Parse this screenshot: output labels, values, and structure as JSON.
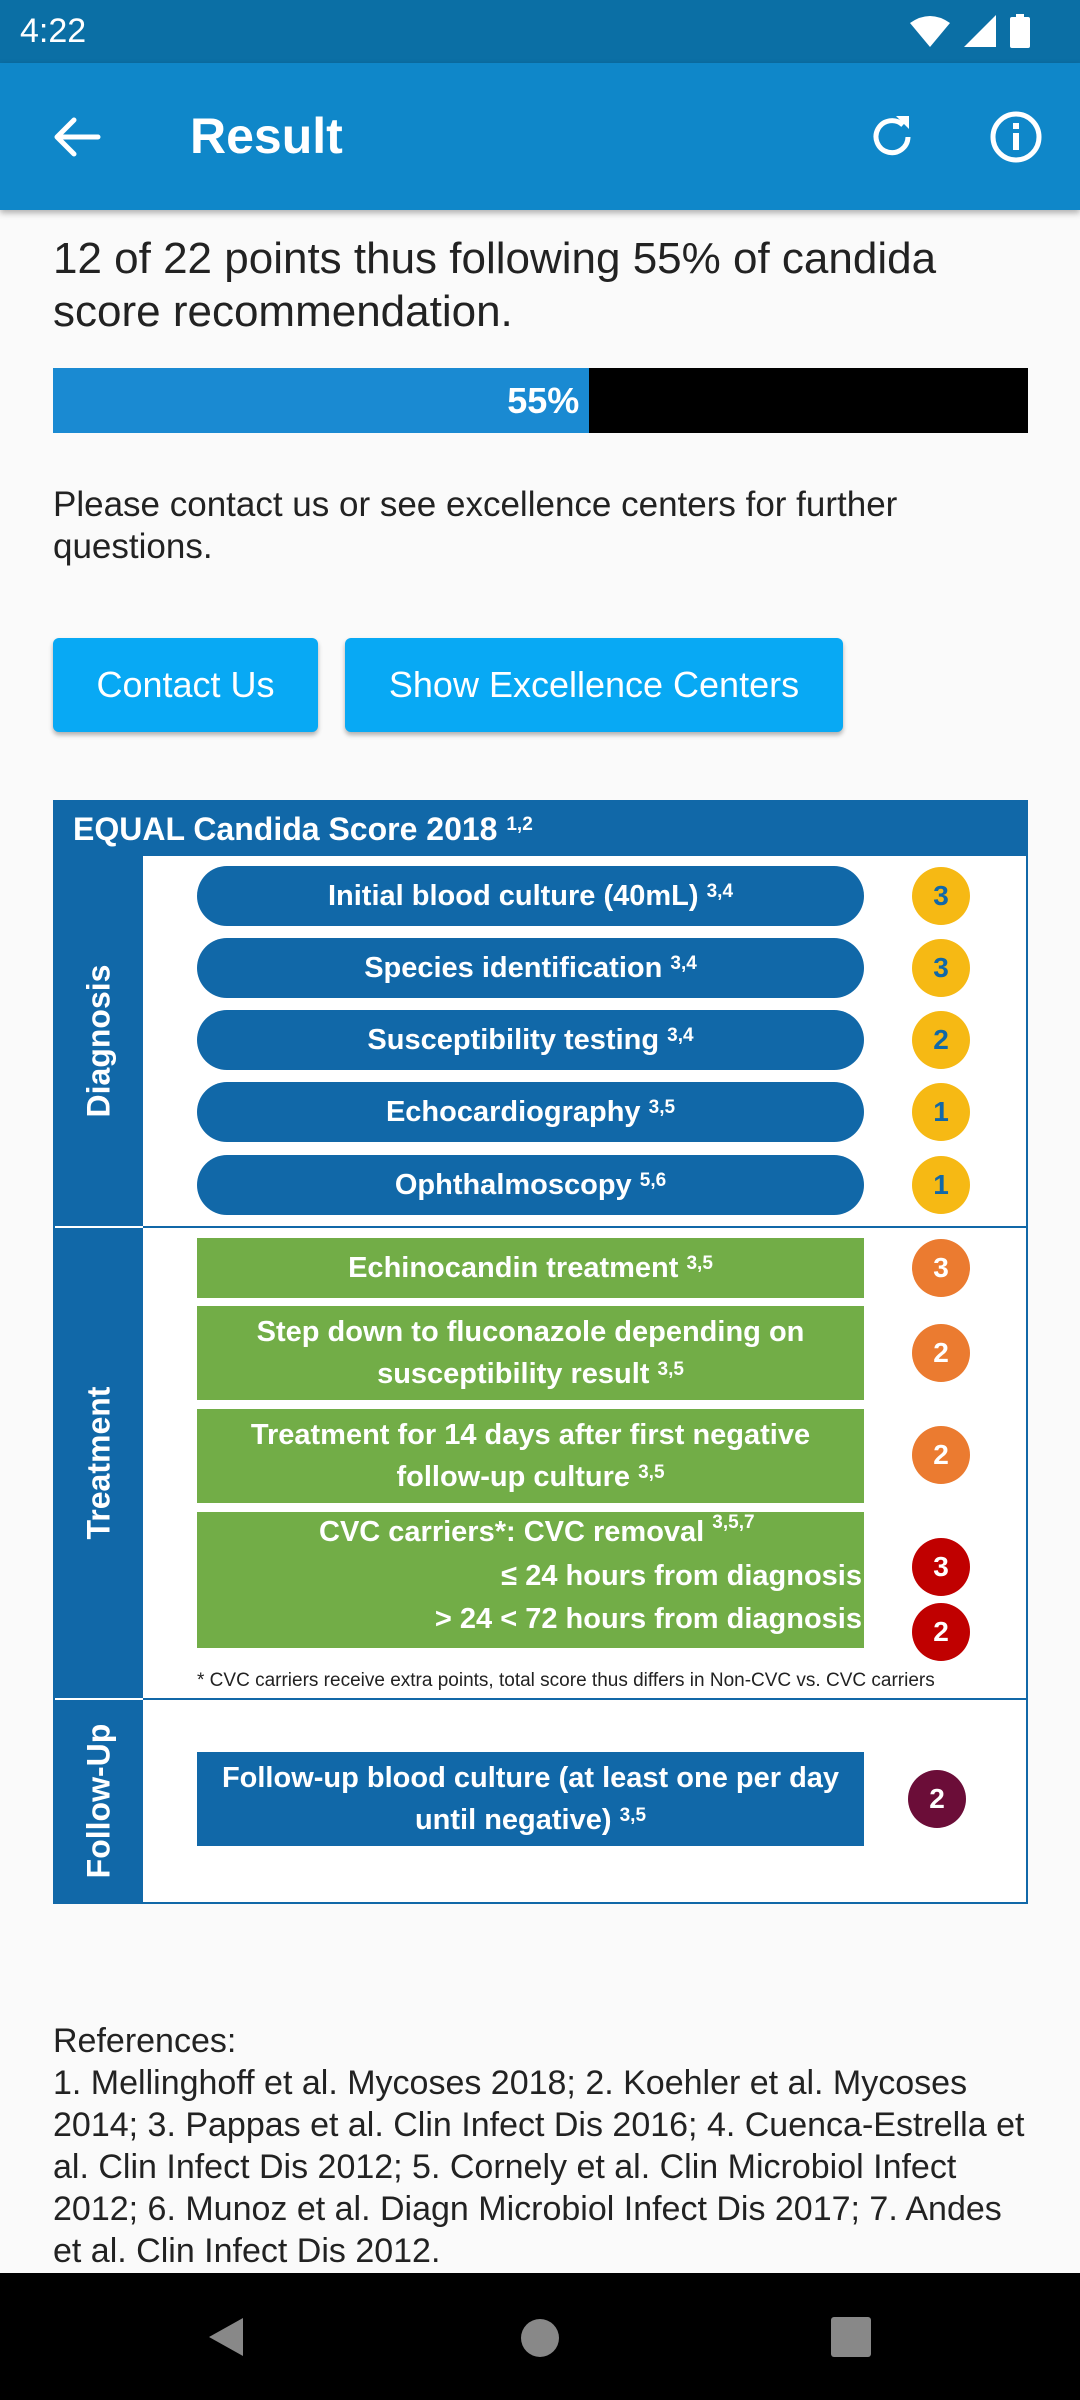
{
  "status_bar": {
    "time": "4:22",
    "icons": [
      "wifi-icon",
      "cellular-signal-icon",
      "battery-icon"
    ]
  },
  "app_bar": {
    "title": "Result",
    "icons": [
      "back-arrow-icon",
      "refresh-icon",
      "info-icon"
    ]
  },
  "summary": {
    "text": "12 of 22 points thus following 55% of candida score recommendation.",
    "progress_percent": 55,
    "progress_label": "55%"
  },
  "contact_text": "Please contact us or see excellence centers for further questions.",
  "buttons": {
    "contact_us": "Contact Us",
    "show_centers": "Show Excellence Centers"
  },
  "score_table": {
    "title": "EQUAL Candida Score 2018",
    "title_refs": "1,2",
    "sections": {
      "diagnosis": {
        "label": "Diagnosis",
        "items": [
          {
            "text": "Initial blood culture (40mL)",
            "refs": "3,4",
            "points": "3"
          },
          {
            "text": "Species identification",
            "refs": "3,4",
            "points": "3"
          },
          {
            "text": "Susceptibility testing",
            "refs": "3,4",
            "points": "2"
          },
          {
            "text": "Echocardiography",
            "refs": "3,5",
            "points": "1"
          },
          {
            "text": "Ophthalmoscopy",
            "refs": "5,6",
            "points": "1"
          }
        ]
      },
      "treatment": {
        "label": "Treatment",
        "items": [
          {
            "text": "Echinocandin treatment",
            "refs": "3,5",
            "points": "3"
          },
          {
            "line1": "Step down to fluconazole depending on",
            "line2": "susceptibility result",
            "refs": "3,5",
            "points": "2"
          },
          {
            "line1": "Treatment for 14 days after first negative",
            "line2": "follow-up culture",
            "refs": "3,5",
            "points": "2"
          }
        ],
        "cvc": {
          "title": "CVC carriers*: CVC removal",
          "refs": "3,5,7",
          "option1": "≤ 24 hours from diagnosis",
          "points1": "3",
          "option2": "> 24 < 72 hours from diagnosis",
          "points2": "2"
        },
        "footnote": "* CVC carriers receive extra points, total score thus differs in Non-CVC vs. CVC carriers"
      },
      "followup": {
        "label": "Follow-Up",
        "item": {
          "line1": "Follow-up blood culture (at least one per day",
          "line2": "until negative)",
          "refs": "3,5",
          "points": "2"
        }
      }
    },
    "colors": {
      "blue": "#1168a8",
      "green": "#72ad47",
      "yellow": "#f6b914",
      "orange": "#eb7b30",
      "red": "#c00000",
      "maroon": "#6b0d38"
    }
  },
  "references": {
    "heading": "References:",
    "text": "1. Mellinghoff et al. Mycoses 2018; 2. Koehler et al. Mycoses 2014; 3. Pappas et al. Clin Infect Dis 2016; 4. Cuenca-Estrella et al. Clin Infect Dis 2012; 5. Cornely et al. Clin Microbiol Infect 2012; 6. Munoz et al. Diagn Microbiol Infect Dis 2017; 7. Andes et al. Clin Infect Dis 2012."
  },
  "nav_bar": {
    "icons": [
      "back-triangle-icon",
      "home-circle-icon",
      "recents-square-icon"
    ]
  }
}
